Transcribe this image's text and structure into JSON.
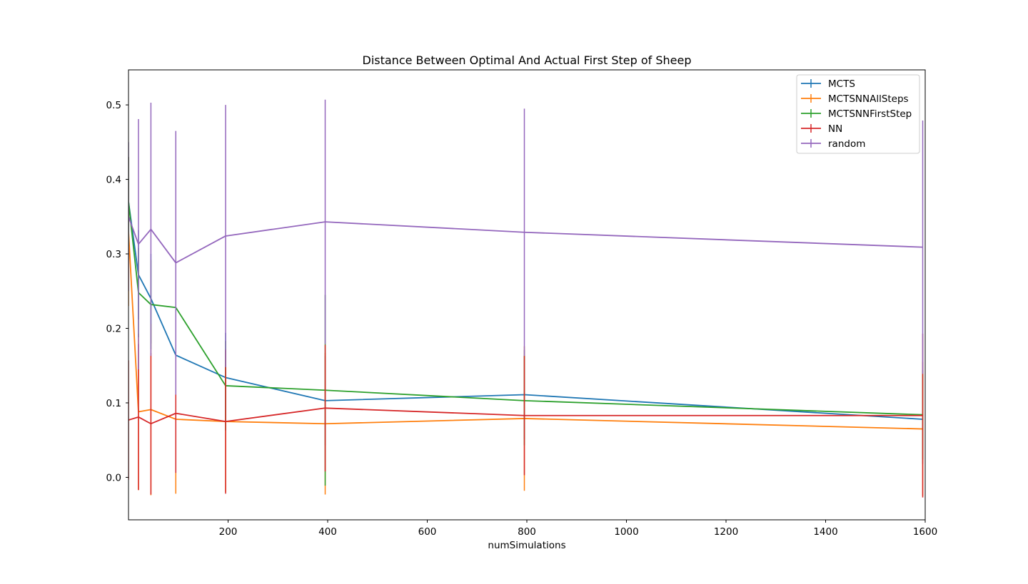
{
  "chart_data": {
    "type": "line",
    "title": "Distance Between Optimal And Actual First Step of Sheep",
    "xlabel": "numSimulations",
    "ylabel": "",
    "xlim": [
      0,
      1600
    ],
    "ylim": [
      -0.057,
      0.547
    ],
    "xticks": [
      200,
      400,
      600,
      800,
      1000,
      1200,
      1400,
      1600
    ],
    "yticks": [
      0.0,
      0.1,
      0.2,
      0.3,
      0.4,
      0.5
    ],
    "grid": false,
    "legend_position": "top-right",
    "x": [
      0,
      20,
      45,
      95,
      195,
      395,
      795,
      1595
    ],
    "series": [
      {
        "name": "MCTS",
        "color": "#1f77b4",
        "values": [
          0.37,
          0.272,
          0.24,
          0.164,
          0.134,
          0.103,
          0.111,
          0.078
        ],
        "errors": [
          0.06,
          0.06,
          0.06,
          0.06,
          0.06,
          0.06,
          0.06,
          0.06
        ]
      },
      {
        "name": "MCTSNNAllSteps",
        "color": "#ff7f0e",
        "values": [
          0.33,
          0.088,
          0.091,
          0.078,
          0.075,
          0.072,
          0.079,
          0.065
        ],
        "errors": [
          0.1,
          0.105,
          0.115,
          0.1,
          0.095,
          0.095,
          0.097,
          0.09
        ]
      },
      {
        "name": "MCTSNNFirstStep",
        "color": "#2ca02c",
        "values": [
          0.37,
          0.248,
          0.232,
          0.228,
          0.123,
          0.117,
          0.103,
          0.084
        ],
        "errors": [
          0.06,
          0.06,
          0.06,
          0.06,
          0.06,
          0.128,
          0.06,
          0.06
        ]
      },
      {
        "name": "NN",
        "color": "#d62728",
        "values": [
          0.077,
          0.081,
          0.072,
          0.086,
          0.075,
          0.093,
          0.083,
          0.083
        ],
        "errors": [
          0.08,
          0.098,
          0.095,
          0.08,
          0.097,
          0.085,
          0.08,
          0.11
        ]
      },
      {
        "name": "random",
        "color": "#9467bd",
        "values": [
          0.35,
          0.313,
          0.333,
          0.288,
          0.324,
          0.343,
          0.329,
          0.309
        ],
        "errors": [
          0.1,
          0.168,
          0.17,
          0.177,
          0.176,
          0.164,
          0.166,
          0.17
        ]
      }
    ]
  }
}
